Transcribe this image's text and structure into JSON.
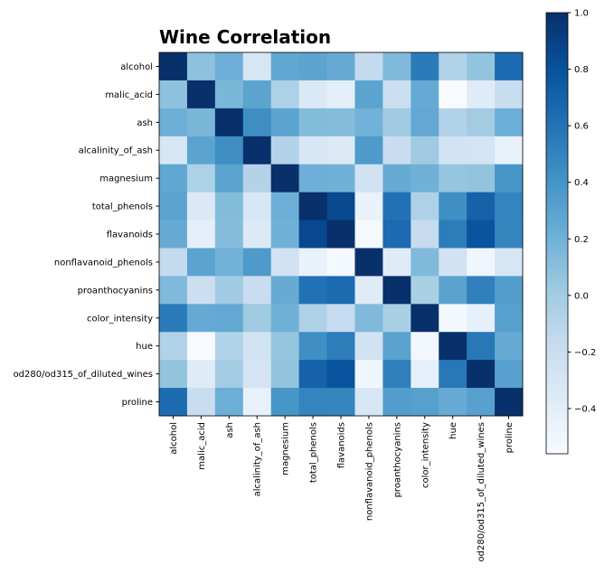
{
  "chart_data": {
    "type": "heatmap",
    "title": "Wine Correlation",
    "colormap": "Blues",
    "labels": [
      "alcohol",
      "malic_acid",
      "ash",
      "alcalinity_of_ash",
      "magnesium",
      "total_phenols",
      "flavanoids",
      "nonflavanoid_phenols",
      "proanthocyanins",
      "color_intensity",
      "hue",
      "od280/od315_of_diluted_wines",
      "proline"
    ],
    "matrix": [
      [
        1.0,
        0.09,
        0.21,
        -0.31,
        0.27,
        0.29,
        0.24,
        -0.16,
        0.14,
        0.55,
        -0.07,
        0.07,
        0.64
      ],
      [
        0.09,
        1.0,
        0.16,
        0.29,
        -0.05,
        -0.34,
        -0.41,
        0.29,
        -0.22,
        0.25,
        -0.56,
        -0.37,
        -0.19
      ],
      [
        0.21,
        0.16,
        1.0,
        0.44,
        0.29,
        0.13,
        0.12,
        0.19,
        0.01,
        0.26,
        -0.07,
        0.0,
        0.22
      ],
      [
        -0.31,
        0.29,
        0.44,
        1.0,
        -0.08,
        -0.32,
        -0.35,
        0.36,
        -0.2,
        0.02,
        -0.27,
        -0.28,
        -0.44
      ],
      [
        0.27,
        -0.05,
        0.29,
        -0.08,
        1.0,
        0.21,
        0.2,
        -0.26,
        0.24,
        0.2,
        0.06,
        0.07,
        0.39
      ],
      [
        0.29,
        -0.34,
        0.13,
        -0.32,
        0.21,
        1.0,
        0.86,
        -0.45,
        0.61,
        -0.06,
        0.43,
        0.7,
        0.5
      ],
      [
        0.24,
        -0.41,
        0.12,
        -0.35,
        0.2,
        0.86,
        1.0,
        -0.54,
        0.65,
        -0.17,
        0.54,
        0.79,
        0.49
      ],
      [
        -0.16,
        0.29,
        0.19,
        0.36,
        -0.26,
        -0.45,
        -0.54,
        1.0,
        -0.37,
        0.14,
        -0.26,
        -0.5,
        -0.31
      ],
      [
        0.14,
        -0.22,
        0.01,
        -0.2,
        0.24,
        0.61,
        0.65,
        -0.37,
        1.0,
        -0.03,
        0.3,
        0.52,
        0.33
      ],
      [
        0.55,
        0.25,
        0.26,
        0.02,
        0.2,
        -0.06,
        -0.17,
        0.14,
        -0.03,
        1.0,
        -0.52,
        -0.43,
        0.32
      ],
      [
        -0.07,
        -0.56,
        -0.07,
        -0.27,
        0.06,
        0.43,
        0.54,
        -0.26,
        0.3,
        -0.52,
        1.0,
        0.57,
        0.24
      ],
      [
        0.07,
        -0.37,
        0.0,
        -0.28,
        0.07,
        0.7,
        0.79,
        -0.5,
        0.52,
        -0.43,
        0.57,
        1.0,
        0.31
      ],
      [
        0.64,
        -0.19,
        0.22,
        -0.44,
        0.39,
        0.5,
        0.49,
        -0.31,
        0.33,
        0.32,
        0.24,
        0.31,
        1.0
      ]
    ],
    "colorbar": {
      "range": [
        -0.56,
        1.0
      ],
      "ticks": [
        1.0,
        0.8,
        0.6,
        0.4,
        0.2,
        0.0,
        -0.2,
        -0.4
      ],
      "tick_labels": [
        "1.0",
        "0.8",
        "0.6",
        "0.4",
        "0.2",
        "0.0",
        "−0.2",
        "−0.4"
      ]
    }
  }
}
